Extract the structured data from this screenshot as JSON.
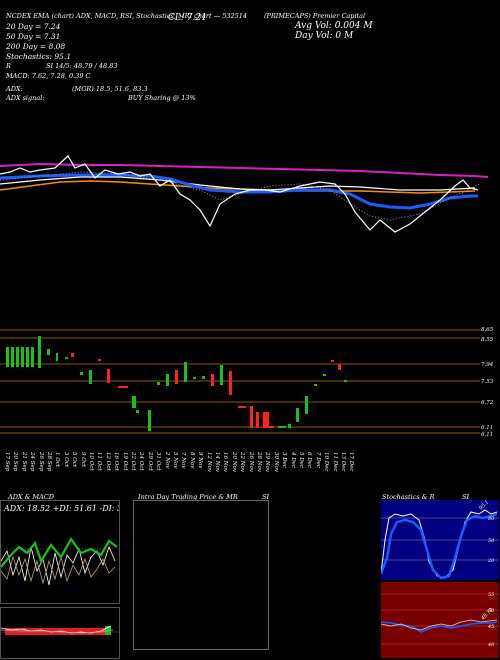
{
  "header": {
    "row1": "NCDEX EMA (chart) ADX, MACD, RSI, Stochastics, MRI chart — ",
    "symbol_ref": "532514",
    "company_title": "(PRIMECAPS) Premier Capital",
    "cl_label": "CL: 7.21",
    "avg_vol_label": "Avg Vol: 0.004   M",
    "day_vol_label": "Day Vol: 0   M"
  },
  "indicators": {
    "dma20": "20 Day = 7.24",
    "dma50": "50 Day = 7.31",
    "dma200": "200 Day = 8.08",
    "stochastics": "Stochastics: 95.1",
    "r_label": "R",
    "si": "SI 14/5: 48.79 / 48.83",
    "macd": "MACD: 7.62, 7.28, 0.39 C"
  },
  "adx_row": {
    "adx": "ADX:",
    "mgr": "(MGR) 18.5,  51.6,  83.3",
    "adx_signal": "ADX  signal:",
    "buy_signal": "BUY Sharing @ 13%"
  },
  "price_levels": [
    "8.65",
    "8.55",
    "7.94",
    "7.53",
    "6.72",
    "6.11",
    "6.11"
  ],
  "dates": [
    "17 Sep",
    "20 Sep",
    "21 Sep",
    "24 Sep",
    "26 Sep",
    "28 Sep",
    "1 Oct",
    "3 Oct",
    "5 Oct",
    "9 Oct",
    "10 Oct",
    "11 Oct",
    "12 Oct",
    "16 Oct",
    "19 Oct",
    "22 Oct",
    "24 Oct",
    "29 Oct",
    "31 Oct",
    "2 Nov",
    "5 Nov",
    "7 Nov",
    "8 Nov",
    "9 Nov",
    "12 Nov",
    "14 Nov",
    "16 Nov",
    "20 Nov",
    "22 Nov",
    "26 Nov",
    "28 Nov",
    "29 Nov",
    "30 Nov",
    "3 Dec",
    "4 Dec",
    "5 Dec",
    "6 Dec",
    "7 Dec",
    "10 Dec",
    "11 Dec",
    "13 Dec",
    "17 Dec"
  ],
  "panels": {
    "adx_macd_title": "ADX  & MACD",
    "adx_readout": "ADX: 18.52  +DI: 51.61 -DI: 35.48",
    "intraday_title": "Intra Day Trading Price  & MR",
    "intraday_si": "SI",
    "stoch_title": "Stochastics & R",
    "stoch_si": "SI",
    "stoch_axis": [
      "80",
      "50",
      "20"
    ],
    "stoch_value": "95.1",
    "rsi_axis": [
      "55",
      "50",
      "45",
      "40"
    ],
    "rsi_value": "48.79"
  },
  "colors": {
    "bg": "#000000",
    "up": "#19c019",
    "down": "#ff2020",
    "ema_magenta": "#d81ec8",
    "ema_blue": "#1a5cff",
    "ema_orange": "#ff8c00",
    "level_line": "#8a5a00",
    "stoch_bg": "#000080",
    "rsi_bg": "#7a0000"
  }
}
